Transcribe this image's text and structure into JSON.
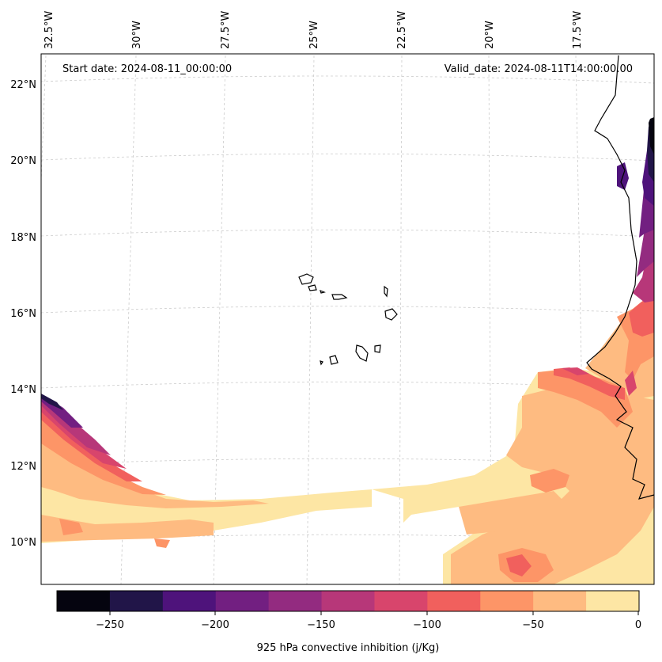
{
  "map": {
    "start_label": "Start date: 2024-08-11_00:00:00",
    "valid_label": "Valid_date: 2024-08-11T14:00:00.00",
    "lon_labels": [
      "32.5°W",
      "30°W",
      "27.5°W",
      "25°W",
      "22.5°W",
      "20°W",
      "17.5°W"
    ],
    "lat_labels": [
      "22°N",
      "20°N",
      "18°N",
      "16°N",
      "14°N",
      "12°N",
      "10°N"
    ]
  },
  "colorbar": {
    "title": "925 hPa convective inhibition (j/Kg)",
    "ticks": [
      "−250",
      "−200",
      "−150",
      "−100",
      "−50",
      "0"
    ],
    "colors": [
      "#05040f",
      "#211548",
      "#4e137b",
      "#721f81",
      "#932b80",
      "#b73779",
      "#d8456c",
      "#f1605d",
      "#fd9567",
      "#febb81",
      "#fde6a4"
    ]
  },
  "colors": {
    "c_weak": "#fde6a4",
    "c_lt": "#febb81",
    "c_mid": "#fd9567",
    "c_strong": "#f1605d",
    "c_red": "#d8456c",
    "c_magenta": "#b73779",
    "c_purple": "#932b80",
    "c_violet": "#721f81",
    "c_indigo": "#4e137b",
    "c_dark": "#211548",
    "c_black": "#05040f"
  }
}
